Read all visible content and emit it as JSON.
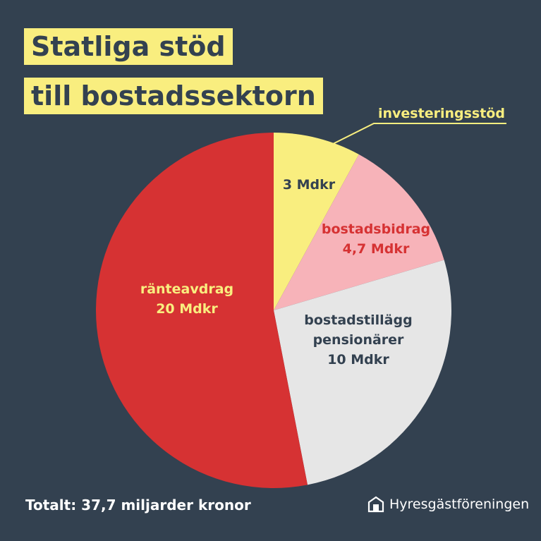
{
  "header": {
    "title_line1": "Statliga stöd",
    "title_line2": "till bostadssektorn"
  },
  "footer": {
    "total": "Totalt: 37,7 miljarder kronor",
    "brand": "Hyresgästföreningen"
  },
  "chart_data": {
    "type": "pie",
    "unit": "Mdkr",
    "slices": [
      {
        "name": "investeringsstöd",
        "value": 3,
        "value_label": "3 Mdkr",
        "color": "#f9ee7f",
        "label_lines": [
          "3 Mdkr"
        ],
        "label_color": "#334150"
      },
      {
        "name": "bostadsbidrag",
        "value": 4.7,
        "value_label": "4,7 Mdkr",
        "color": "#f7b3b9",
        "label_lines": [
          "bostadsbidrag",
          "4,7 Mdkr"
        ],
        "label_color": "#d63233"
      },
      {
        "name": "bostadstillägg pensionärer",
        "value": 10,
        "value_label": "10 Mdkr",
        "color": "#e6e6e6",
        "label_lines": [
          "bostadstillägg",
          "pensionärer",
          "10 Mdkr"
        ],
        "label_color": "#334150"
      },
      {
        "name": "ränteavdrag",
        "value": 20,
        "value_label": "20 Mdkr",
        "color": "#d63233",
        "label_lines": [
          "ränteavdrag",
          "20 Mdkr"
        ],
        "label_color": "#f9ee7f"
      }
    ],
    "callout": {
      "text": "investeringsstöd",
      "color": "#f9ee7f"
    },
    "legend": "none"
  }
}
